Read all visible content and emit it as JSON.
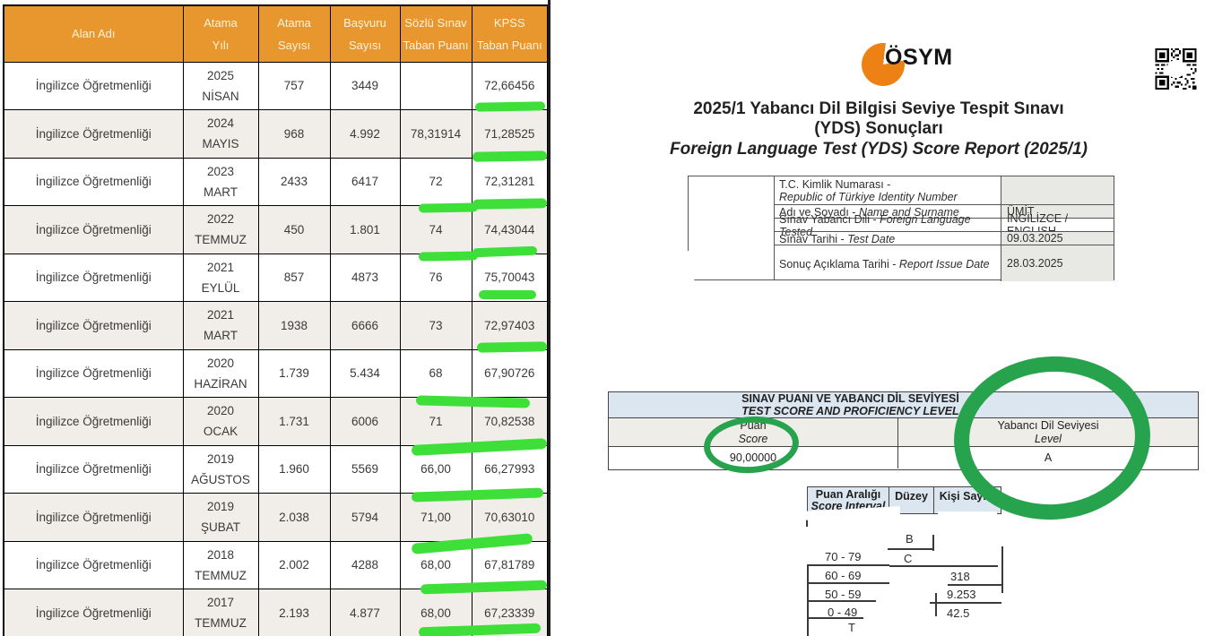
{
  "colors": {
    "header_orange": "#E8972E",
    "row_beige": "#F1EEE9",
    "marker_green": "#3FDF3A",
    "circle_green": "#28A34D",
    "doc_header_blue": "#DCE6F1",
    "value_cell_gray": "#E8E8E4",
    "logo_orange": "#EE8113"
  },
  "kpss_table": {
    "headers": [
      {
        "l1": "Alan Adı",
        "l2": ""
      },
      {
        "l1": "Atama",
        "l2": "Yılı"
      },
      {
        "l1": "Atama",
        "l2": "Sayısı"
      },
      {
        "l1": "Başvuru",
        "l2": "Sayısı"
      },
      {
        "l1": "Sözlü Sınav",
        "l2": "Taban Puanı"
      },
      {
        "l1": "KPSS",
        "l2": "Taban Puanı"
      }
    ],
    "rows": [
      {
        "alan": "İngilizce Öğretmenliği",
        "yil": "2025",
        "ay": "NİSAN",
        "atama": "757",
        "basvuru": "3449",
        "sozlu": "",
        "kpss": "72,66456"
      },
      {
        "alan": "İngilizce Öğretmenliği",
        "yil": "2024",
        "ay": "MAYIS",
        "atama": "968",
        "basvuru": "4.992",
        "sozlu": "78,31914",
        "kpss": "71,28525"
      },
      {
        "alan": "İngilizce Öğretmenliği",
        "yil": "2023",
        "ay": "MART",
        "atama": "2433",
        "basvuru": "6417",
        "sozlu": "72",
        "kpss": "72,31281"
      },
      {
        "alan": "İngilizce Öğretmenliği",
        "yil": "2022",
        "ay": "TEMMUZ",
        "atama": "450",
        "basvuru": "1.801",
        "sozlu": "74",
        "kpss": "74,43044"
      },
      {
        "alan": "İngilizce Öğretmenliği",
        "yil": "2021",
        "ay": "EYLÜL",
        "atama": "857",
        "basvuru": "4873",
        "sozlu": "76",
        "kpss": "75,70043"
      },
      {
        "alan": "İngilizce Öğretmenliği",
        "yil": "2021",
        "ay": "MART",
        "atama": "1938",
        "basvuru": "6666",
        "sozlu": "73",
        "kpss": "72,97403"
      },
      {
        "alan": "İngilizce Öğretmenliği",
        "yil": "2020",
        "ay": "HAZİRAN",
        "atama": "1.739",
        "basvuru": "5.434",
        "sozlu": "68",
        "kpss": "67,90726"
      },
      {
        "alan": "İngilizce Öğretmenliği",
        "yil": "2020",
        "ay": "OCAK",
        "atama": "1.731",
        "basvuru": "6006",
        "sozlu": "71",
        "kpss": "70,82538"
      },
      {
        "alan": "İngilizce Öğretmenliği",
        "yil": "2019",
        "ay": "AĞUSTOS",
        "atama": "1.960",
        "basvuru": "5569",
        "sozlu": "66,00",
        "kpss": "66,27993"
      },
      {
        "alan": "İngilizce Öğretmenliği",
        "yil": "2019",
        "ay": "ŞUBAT",
        "atama": "2.038",
        "basvuru": "5794",
        "sozlu": "71,00",
        "kpss": "70,63010"
      },
      {
        "alan": "İngilizce Öğretmenliği",
        "yil": "2018",
        "ay": "TEMMUZ",
        "atama": "2.002",
        "basvuru": "4288",
        "sozlu": "68,00",
        "kpss": "67,81789"
      },
      {
        "alan": "İngilizce Öğretmenliği",
        "yil": "2017",
        "ay": "TEMMUZ",
        "atama": "2.193",
        "basvuru": "4.877",
        "sozlu": "68,00",
        "kpss": "67,23339"
      }
    ]
  },
  "doc": {
    "logo_text": "ÖSYM",
    "qr_icon": "qr-code-icon",
    "title_tr_1": "2025/1 Yabancı Dil Bilgisi Seviye Tespit Sınavı",
    "title_tr_2": "(YDS) Sonuçları",
    "title_en": "Foreign Language Test (YDS) Score Report (2025/1)",
    "info_table": {
      "rows": [
        {
          "label_tr": "T.C. Kimlik Numarası -",
          "label_en": "Republic of Türkiye Identity Number",
          "value": ""
        },
        {
          "label_tr": "Adı ve Soyadı - ",
          "label_en": "Name and Surname",
          "value": "ÜMİT"
        },
        {
          "label_tr": "Sınav Yabancı Dili - ",
          "label_en": "Foreign Language Tested",
          "value": "İNGİLİZCE / ENGLISH"
        },
        {
          "label_tr": "Sınav Tarihi - ",
          "label_en": "Test Date",
          "value": "09.03.2025"
        },
        {
          "label_tr": "Sonuç Açıklama Tarihi - ",
          "label_en": "Report Issue Date",
          "value": "28.03.2025"
        }
      ]
    },
    "score_table": {
      "header_tr": "SINAV PUANI VE YABANCI DİL SEVİYESİ",
      "header_en": "TEST SCORE AND PROFICIENCY LEVEL",
      "score_label_tr": "Puan",
      "score_label_en": "Score",
      "level_label_tr": "Yabancı Dil Seviyesi",
      "level_label_en": "Level",
      "score_value": "90,00000",
      "level_value": "A"
    },
    "distribution_table": {
      "header_interval_tr": "Puan Aralığı",
      "header_interval_en": "Score Interval",
      "header_level": "Düzey",
      "header_count": "Kişi Sayısı",
      "fragments": {
        "level_b": "B",
        "row1_interval": "70 - 79",
        "row1_level": "C",
        "row2_interval": "60 - 69",
        "row2_count": "318",
        "row3_interval": "50 - 59",
        "row3_count": "9.253",
        "row4_interval": "0 - 49",
        "row4_count": "42.5",
        "total": "T"
      }
    }
  }
}
